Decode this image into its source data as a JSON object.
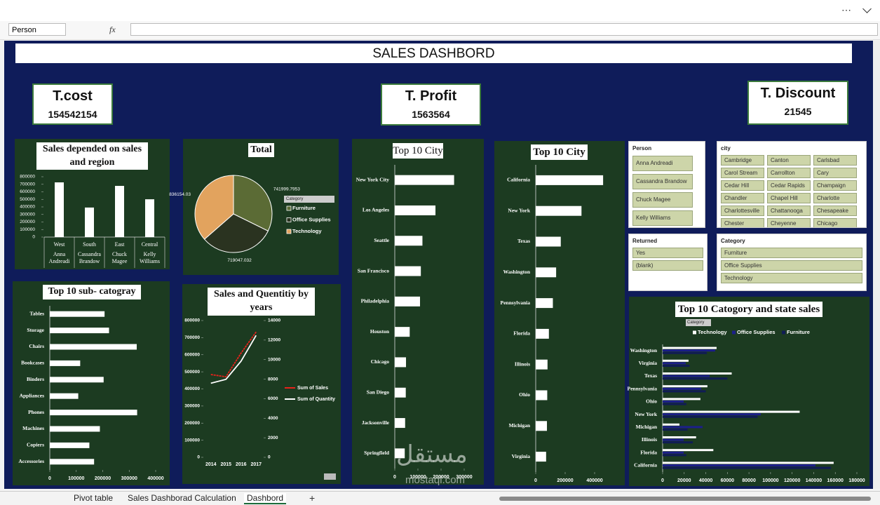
{
  "app": {
    "name_box": "Person",
    "formula_icon": "fx",
    "tabs": [
      "Pivot table",
      "Sales Dashborad Calculation",
      "Dashbord"
    ],
    "active_tab": 2
  },
  "title": "SALES DASHBORD",
  "kpis": [
    {
      "label": "T.cost",
      "value": 154542154
    },
    {
      "label": "T. Profit",
      "value": 1563564
    },
    {
      "label": "T. Discount",
      "value": 21545
    }
  ],
  "slicers": [
    {
      "title": "Person",
      "items": [
        "Anna Andreadi",
        "Cassandra Brandow",
        "Chuck Magee",
        "Kelly Williams"
      ]
    },
    {
      "title": "city",
      "items": [
        "Cambridge",
        "Canton",
        "Carlsbad",
        "Carol Stream",
        "Carrollton",
        "Cary",
        "Cedar Hill",
        "Cedar Rapids",
        "Champaign",
        "Chandler",
        "Chapel Hill",
        "Charlotte",
        "Charlottesville",
        "Chattanooga",
        "Chesapeake",
        "Chester",
        "Cheyenne",
        "Chicago"
      ]
    },
    {
      "title": "Returned",
      "items": [
        "Yes",
        "(blank)"
      ]
    },
    {
      "title": "Category",
      "items": [
        "Furniture",
        "Office Supplies",
        "Technology"
      ]
    }
  ],
  "watermark": {
    "arabic": "مستقل",
    "latin": "mostaql.com"
  },
  "chart_data": [
    {
      "type": "bar",
      "title": "Sales depended on sales and region",
      "categories": [
        "West",
        "South",
        "East",
        "Central"
      ],
      "subcategories": [
        "Anna Andreadi",
        "Cassandra Brandow",
        "Chuck Magee",
        "Kelly Williams"
      ],
      "values": [
        725458,
        391722,
        678781,
        501240
      ],
      "color": "#ffffff",
      "ylim": [
        0,
        800000
      ],
      "yticks": [
        0,
        100000,
        200000,
        300000,
        400000,
        500000,
        600000,
        700000,
        800000
      ]
    },
    {
      "type": "pie",
      "title": "Total",
      "categories": [
        "Furniture",
        "Office Supplies",
        "Technology"
      ],
      "values": [
        741999.7953,
        719047.032,
        836154.03
      ],
      "colors": [
        "#5b6b35",
        "#2a3320",
        "#e2a35e"
      ],
      "legend_title": "Category"
    },
    {
      "type": "bar",
      "orientation": "horizontal",
      "title": "Top 10 sub- catogray",
      "categories": [
        "Tables",
        "Storage",
        "Chairs",
        "Bookcases",
        "Binders",
        "Appliances",
        "Phones",
        "Machines",
        "Copiers",
        "Accessories"
      ],
      "values": [
        206966,
        223844,
        328449,
        114880,
        203413,
        107532,
        330007,
        189239,
        149528,
        167380
      ],
      "color": "#ffffff",
      "xlim": [
        0,
        400000
      ],
      "xticks": [
        0,
        100000,
        200000,
        300000,
        400000
      ]
    },
    {
      "type": "line",
      "title": "Sales and Quentitiy by years",
      "categories": [
        "2014",
        "2015",
        "2016",
        "2017"
      ],
      "series": [
        {
          "name": "Sum of Sales",
          "color": "#e8221c",
          "values": [
            484247,
            470533,
            609206,
            733215
          ]
        },
        {
          "name": "Sum of Quantity",
          "color": "#ffffff",
          "axis": "y2",
          "values": [
            7581,
            7979,
            9837,
            12476
          ]
        }
      ],
      "ylim": [
        0,
        800000
      ],
      "yticks": [
        0,
        100000,
        200000,
        300000,
        400000,
        500000,
        600000,
        700000,
        800000
      ],
      "y2lim": [
        0,
        14000
      ],
      "y2ticks": [
        0,
        2000,
        4000,
        6000,
        8000,
        10000,
        12000,
        14000
      ],
      "legend": "right"
    },
    {
      "type": "bar",
      "orientation": "horizontal",
      "title": "Top 10 City",
      "categories": [
        "New York City",
        "Los Angeles",
        "Seattle",
        "San Francisco",
        "Philadelphia",
        "Houston",
        "Chicago",
        "San Diego",
        "Jacksonville",
        "Springfield"
      ],
      "values": [
        256368,
        175851,
        119541,
        112669,
        109077,
        64505,
        48540,
        47521,
        44713,
        43054
      ],
      "color": "#ffffff",
      "xlim": [
        0,
        350000
      ],
      "xticks": [
        0,
        100000,
        200000,
        300000
      ]
    },
    {
      "type": "bar",
      "orientation": "horizontal",
      "title": "Top 10 City",
      "categories": [
        "California",
        "New York",
        "Texas",
        "Washington",
        "Pennsylvania",
        "Florida",
        "Illinois",
        "Ohio",
        "Michigan",
        "Virginia"
      ],
      "values": [
        457688,
        310876,
        170188,
        138641,
        116512,
        89474,
        80166,
        78258,
        76270,
        70637
      ],
      "color": "#ffffff",
      "xlim": [
        0,
        500000
      ],
      "xticks": [
        0,
        200000,
        400000
      ]
    },
    {
      "type": "bar",
      "orientation": "horizontal",
      "title": "Top 10 Catogory and state sales",
      "legend_title": "Category",
      "categories": [
        "Washington",
        "Virginia",
        "Texas",
        "Pennsylvania",
        "Ohio",
        "New York",
        "Michigan",
        "Illinois",
        "Florida",
        "California"
      ],
      "series": [
        {
          "name": "Technology",
          "color": "#ffffff",
          "values": [
            50000,
            24000,
            64000,
            41500,
            35000,
            127000,
            15600,
            31000,
            47000,
            158500
          ]
        },
        {
          "name": "Office Supplies",
          "color": "#1c1f8a",
          "values": [
            48700,
            21400,
            43500,
            35700,
            19500,
            91000,
            37000,
            19500,
            19500,
            141600
          ]
        },
        {
          "name": "Furniture",
          "color": "#101c55",
          "values": [
            41000,
            25000,
            60000,
            40000,
            22000,
            88000,
            23000,
            28000,
            22000,
            156000
          ]
        }
      ],
      "xlim": [
        0,
        180000
      ],
      "xticks": [
        0,
        20000,
        40000,
        60000,
        80000,
        100000,
        120000,
        140000,
        160000,
        180000
      ]
    }
  ]
}
